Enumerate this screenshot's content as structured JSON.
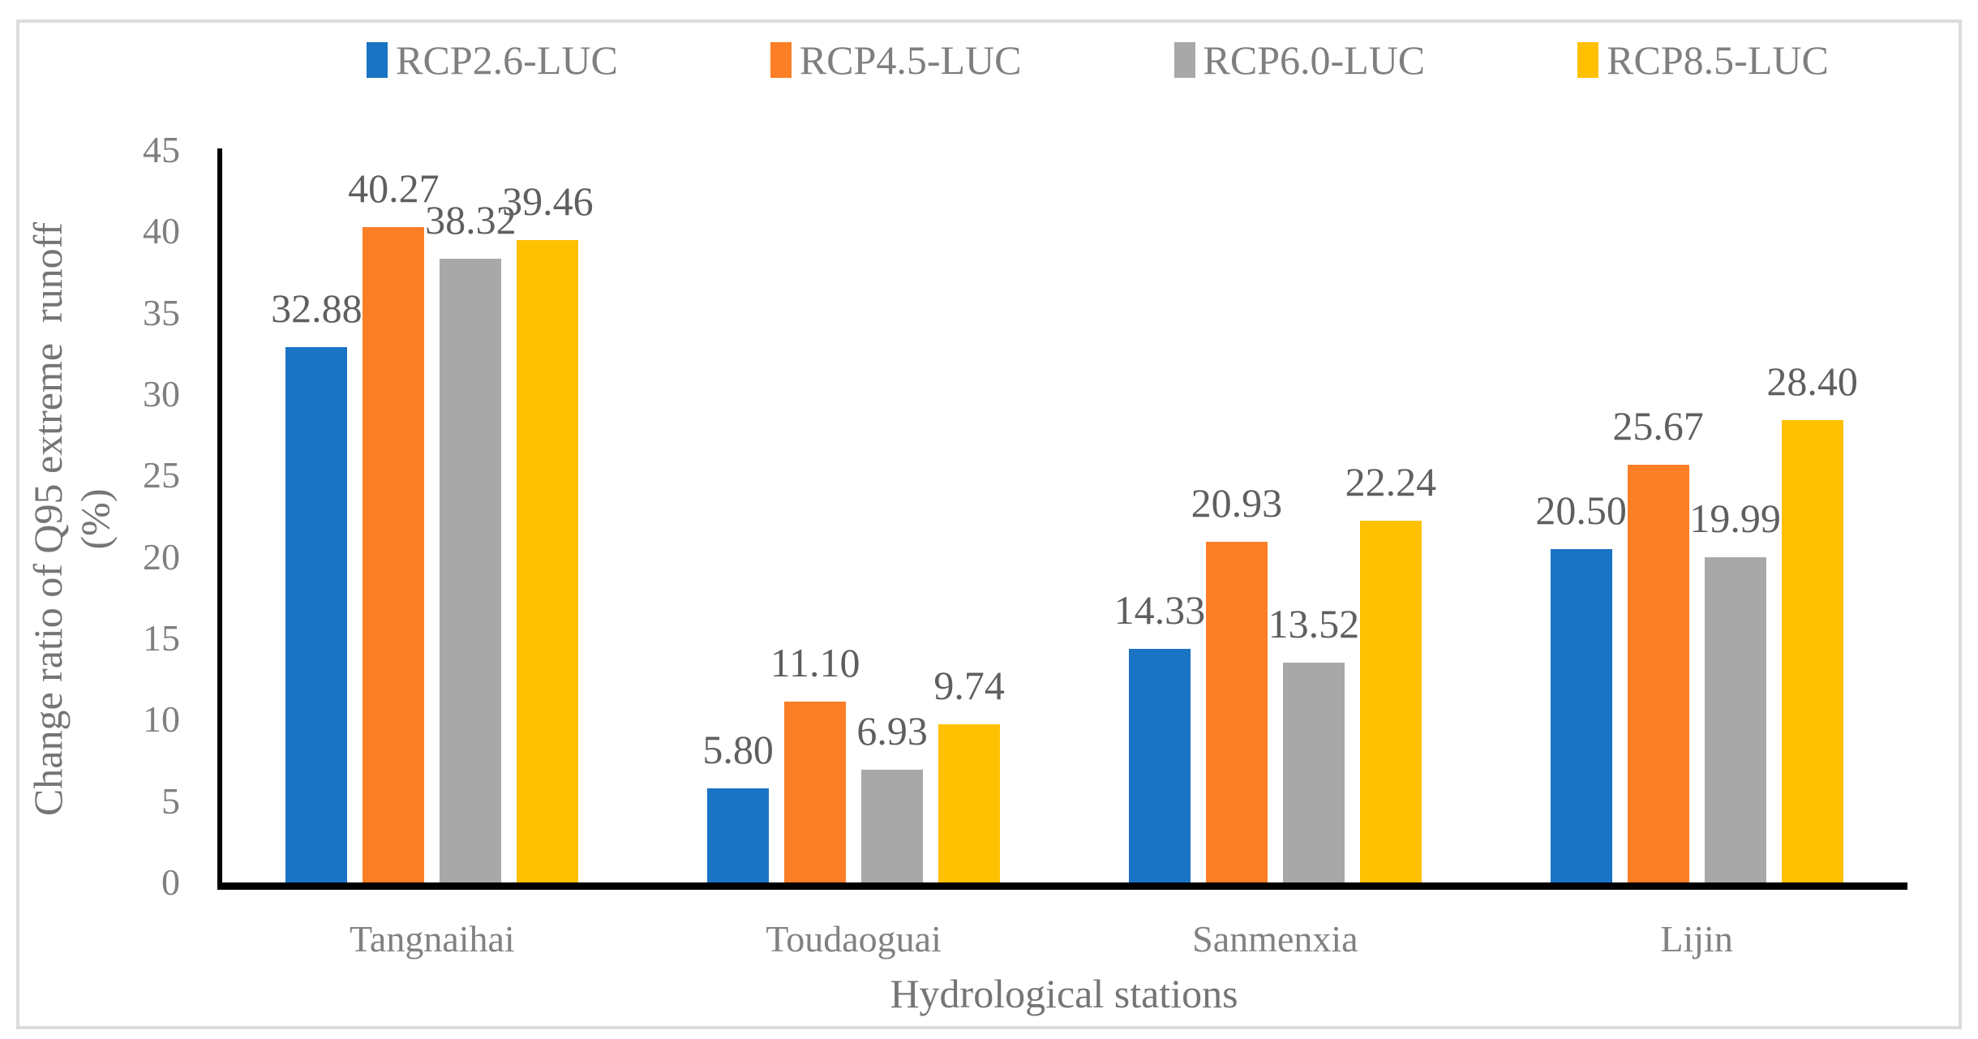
{
  "figure": {
    "background": "#ffffff",
    "border_color": "#dcdcdc"
  },
  "legend": {
    "position": "top",
    "items": [
      {
        "label": "RCP2.6-LUC",
        "color": "#1B73C4"
      },
      {
        "label": "RCP4.5-LUC",
        "color": "#FC7E27"
      },
      {
        "label": "RCP6.0-LUC",
        "color": "#A8A8A8"
      },
      {
        "label": "RCP8.5-LUC",
        "color": "#FFC000"
      }
    ]
  },
  "chart_data": {
    "type": "bar",
    "title": "",
    "xlabel": "Hydrological stations",
    "ylabel": "Change ratio of Q95 extreme runoff (%)",
    "ylabel_lines": [
      "Change ratio of Q95 extreme  runoff",
      "(%)"
    ],
    "categories": [
      "Tangnaihai",
      "Toudaoguai",
      "Sanmenxia",
      "Lijin"
    ],
    "series": [
      {
        "name": "RCP2.6-LUC",
        "color": "#1B73C4",
        "values": [
          32.88,
          5.8,
          14.33,
          20.5
        ],
        "labels": [
          "32.88",
          "5.80",
          "14.33",
          "20.50"
        ]
      },
      {
        "name": "RCP4.5-LUC",
        "color": "#FC7E27",
        "values": [
          40.27,
          11.1,
          20.93,
          25.67
        ],
        "labels": [
          "40.27",
          "11.10",
          "20.93",
          "25.67"
        ]
      },
      {
        "name": "RCP6.0-LUC",
        "color": "#A8A8A8",
        "values": [
          38.32,
          6.93,
          13.52,
          19.99
        ],
        "labels": [
          "38.32",
          "6.93",
          "13.52",
          "19.99"
        ]
      },
      {
        "name": "RCP8.5-LUC",
        "color": "#FFC000",
        "values": [
          39.46,
          9.74,
          22.24,
          28.4
        ],
        "labels": [
          "39.46",
          "9.74",
          "22.24",
          "28.40"
        ]
      }
    ],
    "ylim": [
      0,
      45
    ],
    "yticks": [
      0,
      5,
      10,
      15,
      20,
      25,
      30,
      35,
      40,
      45
    ],
    "grid": false,
    "legend_position": "top",
    "data_labels": "outside-end",
    "axis_color": "#000000",
    "text_colors": {
      "ticks": "#7f7f7f",
      "categories": "#818181",
      "axis_titles": "#757575",
      "data_labels": "#5f5f5f",
      "legend": "#7f7f7f"
    }
  }
}
